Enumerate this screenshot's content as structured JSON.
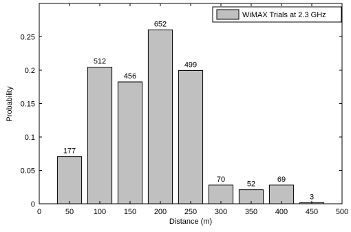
{
  "chart_data": {
    "type": "bar",
    "xlabel": "Distance (m)",
    "ylabel": "Probability",
    "xlim": [
      0,
      500
    ],
    "ylim": [
      0,
      0.3
    ],
    "x_ticks": [
      0,
      50,
      100,
      150,
      200,
      250,
      300,
      350,
      400,
      450,
      500
    ],
    "x_tick_labels": [
      "0",
      "50",
      "100",
      "150",
      "200",
      "250",
      "300",
      "350",
      "400",
      "450",
      "500"
    ],
    "y_ticks": [
      0,
      0.05,
      0.1,
      0.15,
      0.2,
      0.25
    ],
    "y_tick_labels": [
      "0",
      "0.05",
      "0.1",
      "0.15",
      "0.2",
      "0.25"
    ],
    "bar_width": 40,
    "grid": false,
    "legend_placement": "top-right",
    "series": [
      {
        "name": "WiMAX Trials at 2.3 GHz",
        "color": "#c0c0c0",
        "x": [
          50,
          100,
          150,
          200,
          250,
          300,
          350,
          400,
          450
        ],
        "values": [
          0.0705,
          0.2045,
          0.1825,
          0.2605,
          0.1995,
          0.028,
          0.021,
          0.028,
          0.0015
        ],
        "data_labels": [
          "177",
          "512",
          "456",
          "652",
          "499",
          "70",
          "52",
          "69",
          "3"
        ]
      }
    ]
  }
}
